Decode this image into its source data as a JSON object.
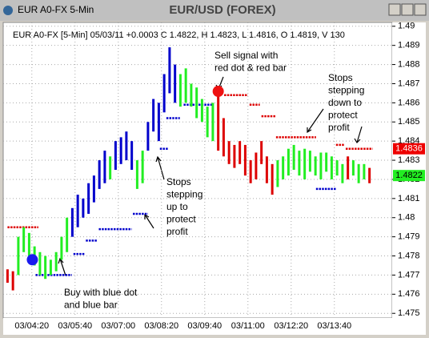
{
  "window_title": "EUR A0-FX 5-Min",
  "chart_data": {
    "type": "hilo",
    "title": "EUR/USD (FOREX)",
    "subtitle": "EUR A0-FX [5-Min] 05/03/11 +0.0003 C 1.4822, H 1.4823, L 1.4816, O 1.4819, V 130",
    "xlim": [
      207,
      927
    ],
    "ylim": [
      1.4748,
      1.4902
    ],
    "xticks": [
      {
        "value": 260,
        "label": "03/04:20"
      },
      {
        "value": 340,
        "label": "03/05:40"
      },
      {
        "value": 420,
        "label": "03/07:00"
      },
      {
        "value": 500,
        "label": "03/08:20"
      },
      {
        "value": 580,
        "label": "03/09:40"
      },
      {
        "value": 660,
        "label": "03/11:00"
      },
      {
        "value": 740,
        "label": "03/12:20"
      },
      {
        "value": 820,
        "label": "03/13:40"
      }
    ],
    "yticks": [
      1.475,
      1.476,
      1.477,
      1.478,
      1.479,
      1.48,
      1.481,
      1.482,
      1.483,
      1.484,
      1.485,
      1.486,
      1.487,
      1.488,
      1.489,
      1.49
    ],
    "grid": true,
    "series": [
      {
        "color": "#dd0000",
        "x": [
          215,
          225
        ],
        "low": [
          1.4766,
          1.4762
        ],
        "high": [
          1.4773,
          1.4772
        ]
      },
      {
        "color": "#22ee22",
        "x": [
          235,
          245,
          255,
          265,
          275,
          285,
          295,
          305,
          315,
          325
        ],
        "low": [
          1.477,
          1.4782,
          1.4778,
          1.4775,
          1.477,
          1.4768,
          1.477,
          1.4772,
          1.4778,
          1.4782
        ],
        "high": [
          1.479,
          1.4795,
          1.4792,
          1.4785,
          1.4782,
          1.478,
          1.4778,
          1.4782,
          1.479,
          1.48
        ]
      },
      {
        "color": "#0000cc",
        "x": [
          335,
          345,
          355,
          365,
          375,
          385,
          395
        ],
        "low": [
          1.479,
          1.4795,
          1.48,
          1.4802,
          1.4808,
          1.4815,
          1.4818
        ],
        "high": [
          1.4805,
          1.4812,
          1.481,
          1.4818,
          1.4822,
          1.483,
          1.4835
        ]
      },
      {
        "color": "#22ee22",
        "x": [
          405
        ],
        "low": [
          1.482
        ],
        "high": [
          1.4832
        ]
      },
      {
        "color": "#0000cc",
        "x": [
          415,
          425,
          435,
          445
        ],
        "low": [
          1.4825,
          1.4828,
          1.483,
          1.4825
        ],
        "high": [
          1.484,
          1.4842,
          1.4845,
          1.484
        ]
      },
      {
        "color": "#22ee22",
        "x": [
          455,
          465
        ],
        "low": [
          1.4815,
          1.4818
        ],
        "high": [
          1.483,
          1.4835
        ]
      },
      {
        "color": "#0000cc",
        "x": [
          475,
          485,
          495,
          505,
          515,
          525
        ],
        "low": [
          1.4835,
          1.4845,
          1.484,
          1.4855,
          1.4865,
          1.486
        ],
        "high": [
          1.485,
          1.4862,
          1.486,
          1.4875,
          1.4889,
          1.488
        ]
      },
      {
        "color": "#22ee22",
        "x": [
          535,
          545,
          555,
          565,
          575,
          585,
          595
        ],
        "low": [
          1.4858,
          1.486,
          1.4858,
          1.4852,
          1.485,
          1.4842,
          1.484
        ],
        "high": [
          1.4875,
          1.4878,
          1.487,
          1.4868,
          1.4862,
          1.4858,
          1.486
        ]
      },
      {
        "color": "#dd0000",
        "x": [
          605,
          615,
          625,
          635,
          645,
          655,
          665,
          675,
          685,
          695,
          705
        ],
        "low": [
          1.4835,
          1.4832,
          1.4828,
          1.4826,
          1.4828,
          1.4822,
          1.4818,
          1.482,
          1.4828,
          1.4818,
          1.4812
        ],
        "high": [
          1.4865,
          1.4852,
          1.484,
          1.4838,
          1.484,
          1.4838,
          1.483,
          1.4834,
          1.484,
          1.4832,
          1.4828
        ]
      },
      {
        "color": "#22ee22",
        "x": [
          715,
          725,
          735,
          745,
          755,
          765,
          775,
          785,
          795,
          805,
          815,
          825,
          835
        ],
        "low": [
          1.4816,
          1.482,
          1.4822,
          1.4825,
          1.4822,
          1.482,
          1.4824,
          1.4822,
          1.482,
          1.4824,
          1.482,
          1.4822,
          1.4818
        ],
        "high": [
          1.483,
          1.4832,
          1.4836,
          1.4838,
          1.4835,
          1.4836,
          1.4835,
          1.4832,
          1.4834,
          1.4834,
          1.4832,
          1.483,
          1.4828
        ]
      },
      {
        "color": "#dd0000",
        "x": [
          845
        ],
        "low": [
          1.482
        ],
        "high": [
          1.4832
        ]
      },
      {
        "color": "#22ee22",
        "x": [
          855,
          865,
          875
        ],
        "low": [
          1.4822,
          1.4818,
          1.482
        ],
        "high": [
          1.483,
          1.4828,
          1.4828
        ]
      },
      {
        "color": "#dd0000",
        "x": [
          885
        ],
        "low": [
          1.4818
        ],
        "high": [
          1.4826
        ]
      }
    ],
    "stops": [
      {
        "color": "#dd0000",
        "x": [
          215,
          272
        ],
        "value": 1.4795
      },
      {
        "color": "#0000cc",
        "x": [
          267,
          334
        ],
        "value": 1.477
      },
      {
        "color": "#0000cc",
        "x": [
          337,
          358
        ],
        "value": 1.4781
      },
      {
        "color": "#0000cc",
        "x": [
          360,
          381
        ],
        "value": 1.4788
      },
      {
        "color": "#0000cc",
        "x": [
          384,
          445
        ],
        "value": 1.4794
      },
      {
        "color": "#0000cc",
        "x": [
          447,
          475
        ],
        "value": 1.4802
      },
      {
        "color": "#0000cc",
        "x": [
          497,
          512
        ],
        "value": 1.4836
      },
      {
        "color": "#0000cc",
        "x": [
          509,
          534
        ],
        "value": 1.4852
      },
      {
        "color": "#0000cc",
        "x": [
          541,
          593
        ],
        "value": 1.4859
      },
      {
        "color": "#dd0000",
        "x": [
          616,
          660
        ],
        "value": 1.4864
      },
      {
        "color": "#dd0000",
        "x": [
          663,
          682
        ],
        "value": 1.4859
      },
      {
        "color": "#dd0000",
        "x": [
          685,
          711
        ],
        "value": 1.4853
      },
      {
        "color": "#dd0000",
        "x": [
          712,
          786
        ],
        "value": 1.4842
      },
      {
        "color": "#0000cc",
        "x": [
          786,
          823
        ],
        "value": 1.4815
      },
      {
        "color": "#dd0000",
        "x": [
          823,
          838
        ],
        "value": 1.4838
      },
      {
        "color": "#dd0000",
        "x": [
          841,
          891
        ],
        "value": 1.4836
      }
    ],
    "signals": [
      {
        "color": "#1a1aee",
        "x": 261,
        "value": 1.4778
      },
      {
        "color": "#ee1111",
        "x": 605,
        "value": 1.4866
      }
    ],
    "price_tags": [
      {
        "value": 1.4836,
        "color": "#ee0000"
      },
      {
        "value": 1.4822,
        "color": "#22ee22"
      }
    ],
    "annotations": [
      {
        "lines": [
          "Sell signal with",
          "red dot & red bar"
        ]
      },
      {
        "lines": [
          "Stops",
          "stepping",
          "down to",
          "protect",
          "profit"
        ]
      },
      {
        "lines": [
          "Stops",
          "stepping",
          "up to",
          "protect",
          "profit"
        ]
      },
      {
        "lines": [
          "Buy with blue dot",
          "and blue bar"
        ]
      }
    ]
  }
}
